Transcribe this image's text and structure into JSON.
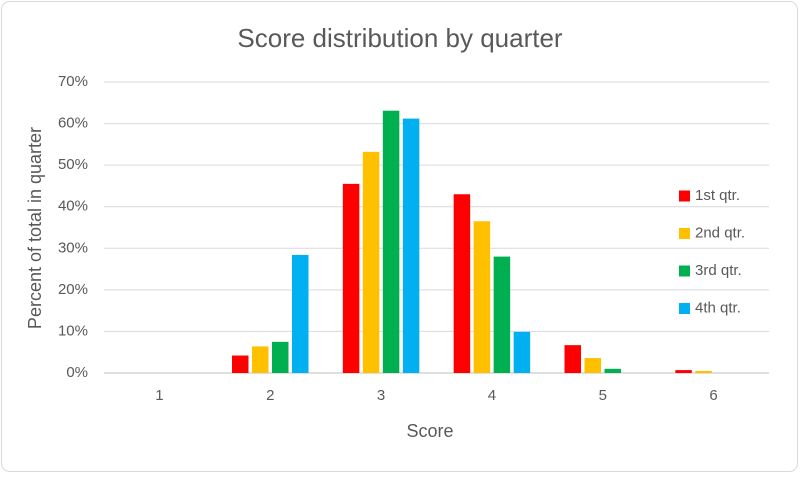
{
  "chart_data": {
    "type": "bar",
    "title": "Score distribution by quarter",
    "x_label": "Score",
    "y_label": "Percent of total in quarter",
    "categories": [
      "1",
      "2",
      "3",
      "4",
      "5",
      "6"
    ],
    "series": [
      {
        "name": "1st qtr.",
        "color": "#ff0000",
        "values": [
          0,
          4.2,
          45.5,
          43,
          6.7,
          0.7
        ]
      },
      {
        "name": "2nd qtr.",
        "color": "#ffc000",
        "values": [
          0,
          6.4,
          53.2,
          36.5,
          3.6,
          0.5
        ]
      },
      {
        "name": "3rd qtr.",
        "color": "#00b050",
        "values": [
          0,
          7.5,
          63.1,
          28,
          1.0,
          0
        ]
      },
      {
        "name": "4th qtr.",
        "color": "#00b0f0",
        "values": [
          0,
          28.4,
          61.2,
          9.9,
          0,
          0
        ]
      }
    ],
    "ylim": [
      0,
      70
    ],
    "yticks": [
      {
        "value": 0,
        "label": "0%"
      },
      {
        "value": 10,
        "label": "10%"
      },
      {
        "value": 20,
        "label": "20%"
      },
      {
        "value": 30,
        "label": "30%"
      },
      {
        "value": 40,
        "label": "40%"
      },
      {
        "value": 50,
        "label": "50%"
      },
      {
        "value": 60,
        "label": "60%"
      },
      {
        "value": 70,
        "label": "70%"
      }
    ],
    "grid": true,
    "legend": "right"
  }
}
